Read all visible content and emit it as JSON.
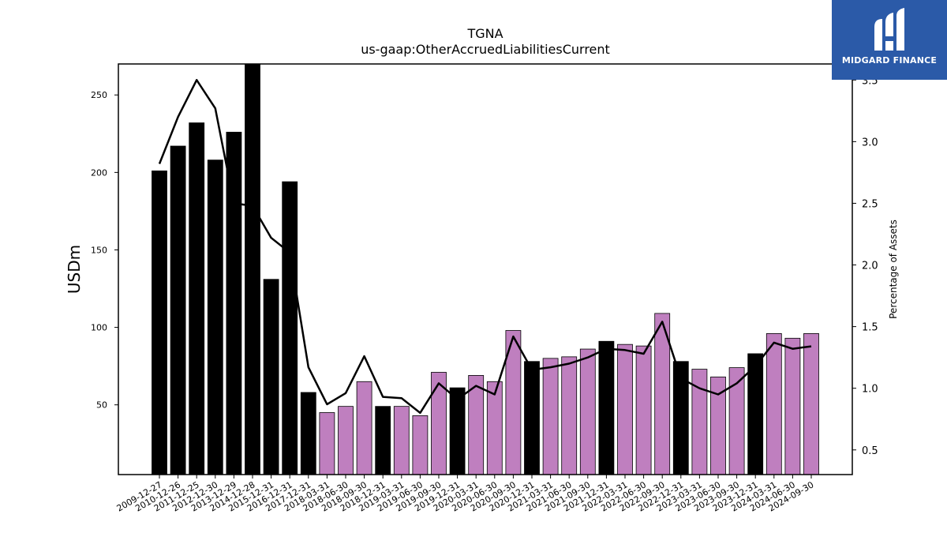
{
  "logo": {
    "text": "MIDGARD FINANCE",
    "bg_color": "#2b5aa8"
  },
  "chart_data": {
    "type": "bar",
    "title": "TGNA",
    "subtitle": "us-gaap:OtherAccruedLiabilitiesCurrent",
    "ylabel": "USDm",
    "y2label": "Percentage of Assets",
    "ylim": [
      5,
      270
    ],
    "y2lim": [
      0.3,
      3.63
    ],
    "yticks": [
      50,
      100,
      150,
      200,
      250
    ],
    "y2ticks": [
      0.5,
      1.0,
      1.5,
      2.0,
      2.5,
      3.0,
      3.5
    ],
    "colors": {
      "annual_bar": "#000000",
      "quarterly_bar": "#bf7fbf",
      "line": "#000000"
    },
    "categories": [
      "2009-12-27",
      "2010-12-26",
      "2011-12-25",
      "2012-12-30",
      "2013-12-29",
      "2014-12-28",
      "2015-12-31",
      "2016-12-31",
      "2017-12-31",
      "2018-03-31",
      "2018-06-30",
      "2018-09-30",
      "2018-12-31",
      "2019-03-31",
      "2019-06-30",
      "2019-09-30",
      "2019-12-31",
      "2020-03-31",
      "2020-06-30",
      "2020-09-30",
      "2020-12-31",
      "2021-03-31",
      "2021-06-30",
      "2021-09-30",
      "2021-12-31",
      "2022-03-31",
      "2022-06-30",
      "2022-09-30",
      "2022-12-31",
      "2023-03-31",
      "2023-06-30",
      "2023-09-30",
      "2023-12-31",
      "2024-03-31",
      "2024-06-30",
      "2024-09-30"
    ],
    "series": [
      {
        "kind": "bar",
        "values": [
          201,
          217,
          232,
          208,
          226,
          270,
          131,
          194,
          58,
          45,
          49,
          65,
          49,
          49,
          43,
          71,
          61,
          69,
          65,
          98,
          78,
          80,
          81,
          86,
          91,
          89,
          88,
          109,
          78,
          73,
          68,
          74,
          83,
          96,
          93,
          96
        ],
        "period": [
          "annual",
          "annual",
          "annual",
          "annual",
          "annual",
          "annual",
          "annual",
          "annual",
          "annual",
          "quarterly",
          "quarterly",
          "quarterly",
          "annual",
          "quarterly",
          "quarterly",
          "quarterly",
          "annual",
          "quarterly",
          "quarterly",
          "quarterly",
          "annual",
          "quarterly",
          "quarterly",
          "quarterly",
          "annual",
          "quarterly",
          "quarterly",
          "quarterly",
          "annual",
          "quarterly",
          "quarterly",
          "quarterly",
          "annual",
          "quarterly",
          "quarterly",
          "quarterly"
        ]
      },
      {
        "kind": "line",
        "axis": "right",
        "values": [
          2.82,
          3.2,
          3.5,
          3.27,
          2.5,
          2.48,
          2.22,
          2.1,
          1.17,
          0.87,
          0.96,
          1.26,
          0.93,
          0.92,
          0.8,
          1.04,
          0.91,
          1.02,
          0.95,
          1.42,
          1.15,
          1.17,
          1.2,
          1.25,
          1.32,
          1.31,
          1.28,
          1.54,
          1.08,
          1.0,
          0.95,
          1.04,
          1.18,
          1.37,
          1.32,
          1.34
        ]
      }
    ]
  }
}
